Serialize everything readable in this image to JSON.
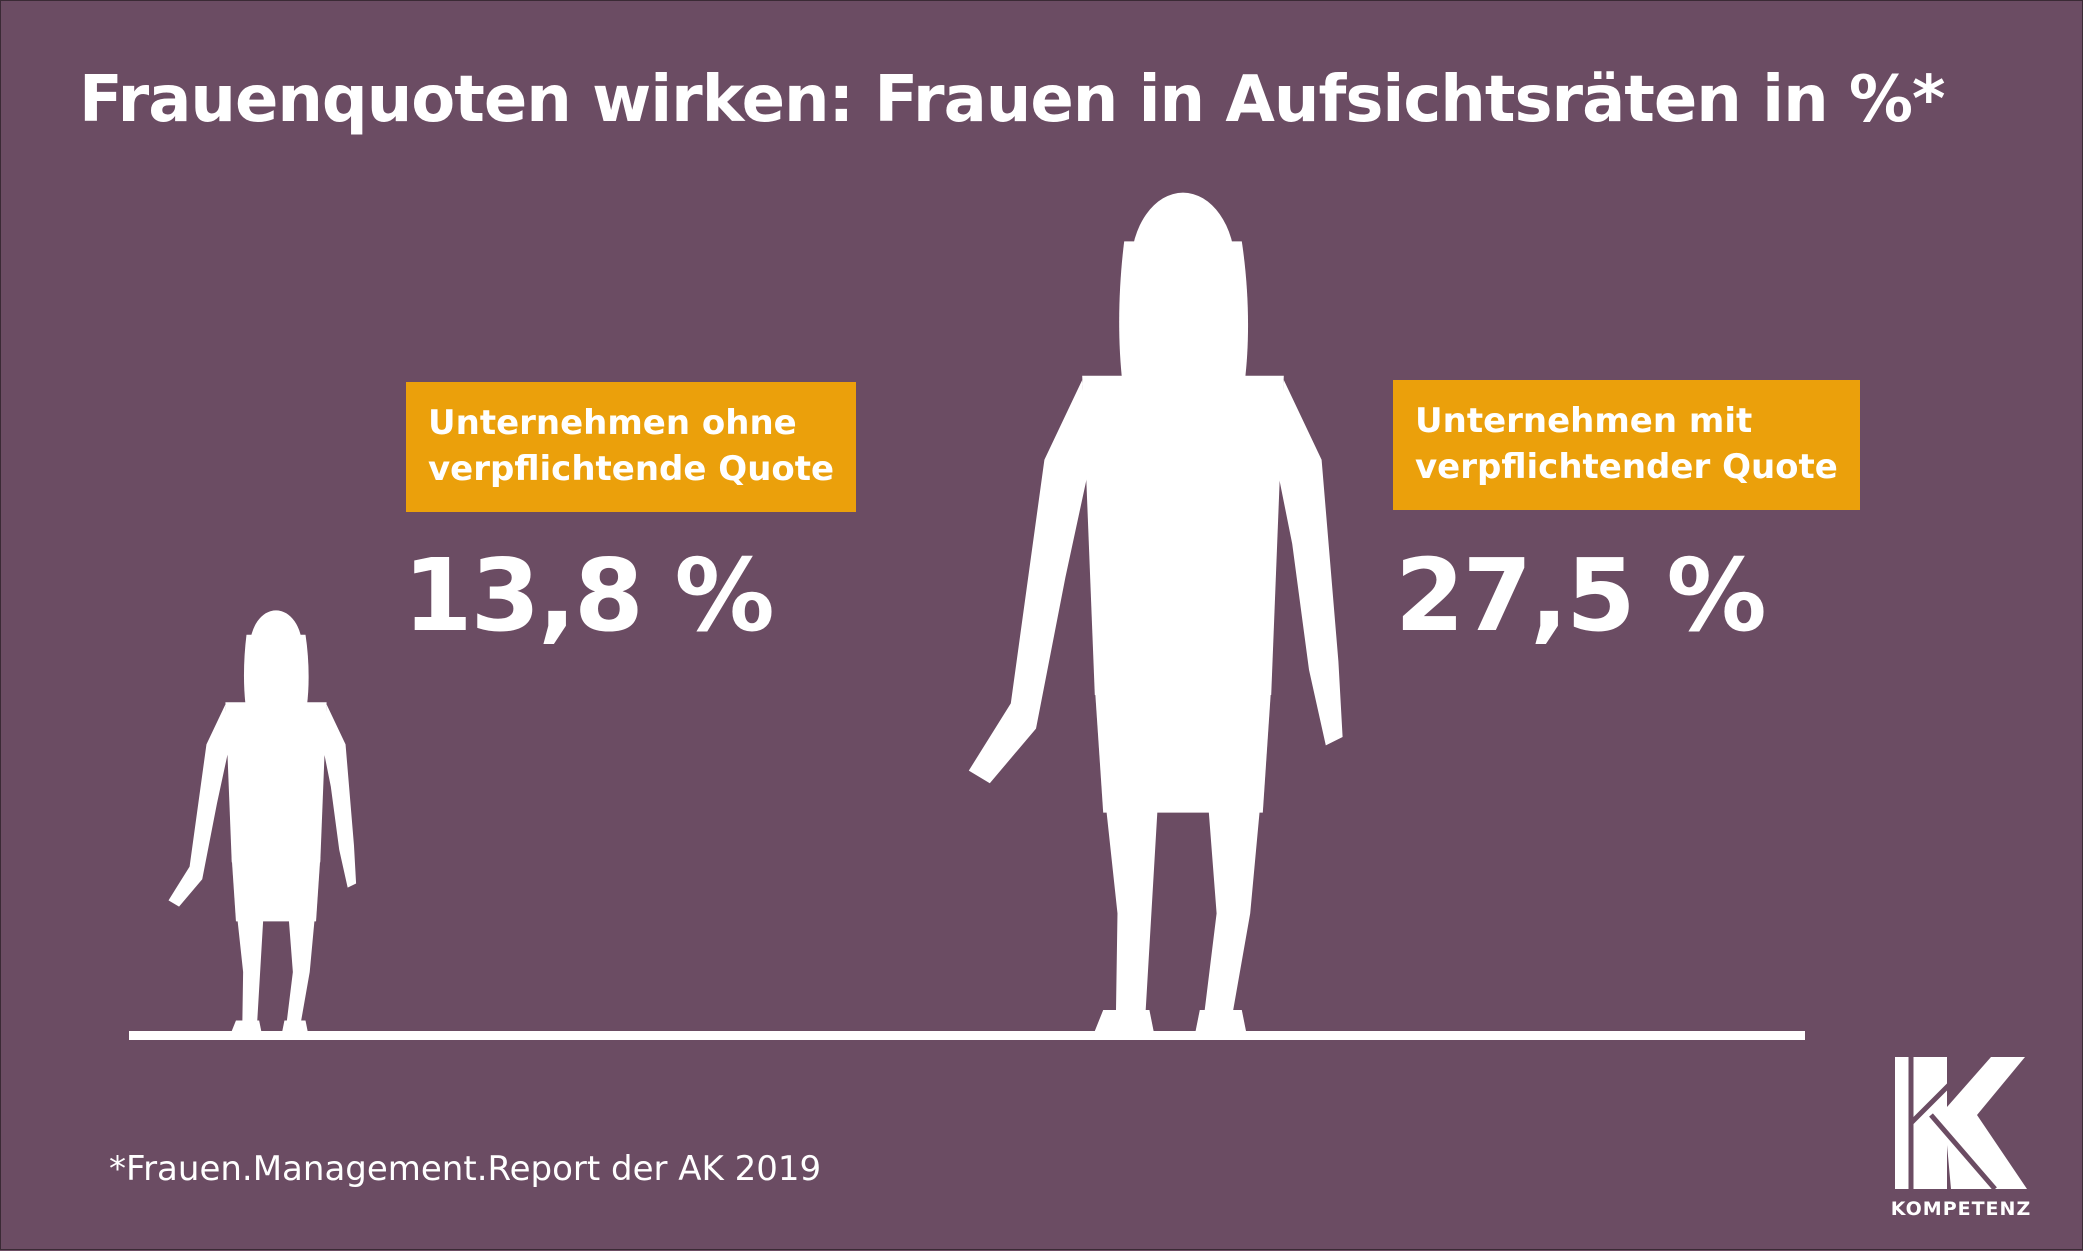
{
  "title": "Frauenquoten wirken: Frauen in Aufsichtsräten in %*",
  "colors": {
    "background": "#6b4c63",
    "label_box": "#eba00b",
    "foreground": "#ffffff"
  },
  "chart_data": {
    "type": "bar",
    "title": "Frauenquoten wirken: Frauen in Aufsichtsräten in %*",
    "unit": "%",
    "categories": [
      [
        "Unternehmen ohne",
        "verpflichtende Quote"
      ],
      [
        "Unternehmen mit",
        "verpflichtender Quote"
      ]
    ],
    "values": [
      13.8,
      27.5
    ],
    "value_labels": [
      "13,8 %",
      "27,5 %"
    ],
    "mark": "woman-silhouette"
  },
  "footnote": "*Frauen.Management.Report der AK 2019",
  "logo": {
    "letter": "K",
    "text": "KOMPETENZ"
  }
}
